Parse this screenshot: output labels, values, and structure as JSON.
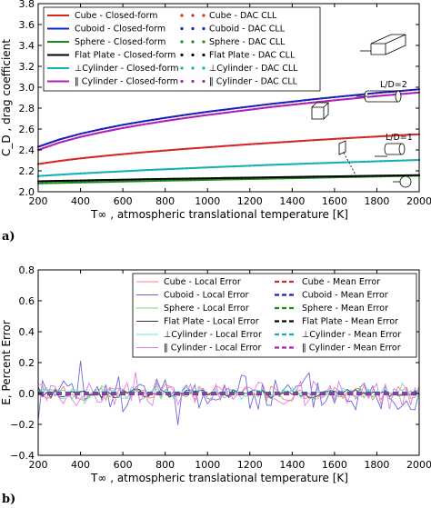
{
  "chart_data": [
    {
      "type": "line",
      "panel_label": "a)",
      "xlabel": "T∞ , atmospheric translational temperature [K]",
      "ylabel": "C_D , drag coefficient",
      "xlim": [
        200,
        2000
      ],
      "ylim": [
        2.0,
        3.8
      ],
      "xticks": [
        "200",
        "400",
        "600",
        "800",
        "1000",
        "1200",
        "1400",
        "1600",
        "1800",
        "2000"
      ],
      "yticks": [
        "2.0",
        "2.2",
        "2.4",
        "2.6",
        "2.8",
        "3.0",
        "3.2",
        "3.4",
        "3.6",
        "3.8"
      ],
      "grid": false,
      "legend_position": "top",
      "legend_columns": [
        [
          "Cube - Closed-form",
          "Cuboid - Closed-form",
          "Sphere - Closed-form",
          "Flat Plate - Closed-form",
          "⊥Cylinder - Closed-form",
          "‖ Cylinder - Closed-form"
        ],
        [
          "Cube - DAC CLL",
          "Cuboid - DAC CLL",
          "Sphere - DAC CLL",
          "Flat Plate - DAC CLL",
          "⊥Cylinder - DAC CLL",
          "‖ Cylinder - DAC CLL"
        ]
      ],
      "shape_annotations": [
        "L/D=2",
        "L/D=1"
      ],
      "x": [
        200,
        300,
        400,
        500,
        600,
        700,
        800,
        900,
        1000,
        1100,
        1200,
        1300,
        1400,
        1500,
        1600,
        1700,
        1800,
        1900,
        2000
      ],
      "series": [
        {
          "name": "Cube - Closed-form",
          "color": "#d62728",
          "style": "solid",
          "values": [
            2.265,
            2.295,
            2.32,
            2.34,
            2.36,
            2.378,
            2.395,
            2.41,
            2.425,
            2.44,
            2.455,
            2.468,
            2.48,
            2.493,
            2.505,
            2.517,
            2.528,
            2.54,
            2.55
          ]
        },
        {
          "name": "Cuboid - Closed-form",
          "color": "#1f1fbf",
          "style": "solid",
          "values": [
            2.43,
            2.5,
            2.555,
            2.6,
            2.64,
            2.675,
            2.707,
            2.737,
            2.765,
            2.79,
            2.815,
            2.84,
            2.862,
            2.885,
            2.905,
            2.925,
            2.945,
            2.962,
            2.98
          ]
        },
        {
          "name": "Sphere - Closed-form",
          "color": "#1a8a1a",
          "style": "solid",
          "values": [
            2.08,
            2.085,
            2.09,
            2.094,
            2.098,
            2.102,
            2.106,
            2.11,
            2.114,
            2.118,
            2.122,
            2.126,
            2.13,
            2.134,
            2.138,
            2.142,
            2.146,
            2.15,
            2.154
          ]
        },
        {
          "name": "Flat Plate - Closed-form",
          "color": "#000000",
          "style": "solid",
          "values": [
            2.1,
            2.104,
            2.108,
            2.112,
            2.116,
            2.12,
            2.123,
            2.126,
            2.129,
            2.132,
            2.135,
            2.138,
            2.141,
            2.144,
            2.147,
            2.15,
            2.153,
            2.156,
            2.159
          ]
        },
        {
          "name": "⊥Cylinder - Closed-form",
          "color": "#17b0b0",
          "style": "solid",
          "values": [
            2.15,
            2.163,
            2.175,
            2.186,
            2.196,
            2.206,
            2.215,
            2.224,
            2.233,
            2.241,
            2.249,
            2.257,
            2.264,
            2.271,
            2.278,
            2.285,
            2.291,
            2.298,
            2.304
          ]
        },
        {
          "name": "‖ Cylinder - Closed-form",
          "color": "#b020b0",
          "style": "solid",
          "values": [
            2.4,
            2.47,
            2.525,
            2.57,
            2.61,
            2.645,
            2.677,
            2.707,
            2.735,
            2.76,
            2.785,
            2.81,
            2.832,
            2.855,
            2.875,
            2.895,
            2.915,
            2.932,
            2.95
          ]
        },
        {
          "name": "Cube - DAC CLL",
          "color": "#d62728",
          "style": "dotted",
          "values": [
            2.265,
            2.295,
            2.32,
            2.34,
            2.36,
            2.378,
            2.395,
            2.41,
            2.425,
            2.44,
            2.455,
            2.468,
            2.48,
            2.493,
            2.505,
            2.517,
            2.528,
            2.54,
            2.55
          ]
        },
        {
          "name": "Cuboid - DAC CLL",
          "color": "#1f1fbf",
          "style": "dotted",
          "values": [
            2.43,
            2.5,
            2.555,
            2.6,
            2.64,
            2.675,
            2.707,
            2.737,
            2.765,
            2.79,
            2.815,
            2.84,
            2.862,
            2.885,
            2.905,
            2.925,
            2.945,
            2.962,
            2.98
          ]
        },
        {
          "name": "Sphere - DAC CLL",
          "color": "#1a8a1a",
          "style": "dotted",
          "values": [
            2.08,
            2.085,
            2.09,
            2.094,
            2.098,
            2.102,
            2.106,
            2.11,
            2.114,
            2.118,
            2.122,
            2.126,
            2.13,
            2.134,
            2.138,
            2.142,
            2.146,
            2.15,
            2.154
          ]
        },
        {
          "name": "Flat Plate - DAC CLL",
          "color": "#000000",
          "style": "dotted",
          "values": [
            2.1,
            2.104,
            2.108,
            2.112,
            2.116,
            2.12,
            2.123,
            2.126,
            2.129,
            2.132,
            2.135,
            2.138,
            2.141,
            2.144,
            2.147,
            2.15,
            2.153,
            2.156,
            2.159
          ]
        },
        {
          "name": "⊥Cylinder - DAC CLL",
          "color": "#17b0b0",
          "style": "dotted",
          "values": [
            2.15,
            2.163,
            2.175,
            2.186,
            2.196,
            2.206,
            2.215,
            2.224,
            2.233,
            2.241,
            2.249,
            2.257,
            2.264,
            2.271,
            2.278,
            2.285,
            2.291,
            2.298,
            2.304
          ]
        },
        {
          "name": "‖ Cylinder - DAC CLL",
          "color": "#b020b0",
          "style": "dotted",
          "values": [
            2.4,
            2.47,
            2.525,
            2.57,
            2.61,
            2.645,
            2.677,
            2.707,
            2.735,
            2.76,
            2.785,
            2.81,
            2.832,
            2.855,
            2.875,
            2.895,
            2.915,
            2.932,
            2.95
          ]
        }
      ]
    },
    {
      "type": "line",
      "panel_label": "b)",
      "xlabel": "T∞ , atmospheric translational temperature [K]",
      "ylabel": "E, Percent Error",
      "xlim": [
        200,
        2000
      ],
      "ylim": [
        -0.4,
        0.8
      ],
      "xticks": [
        "200",
        "400",
        "600",
        "800",
        "1000",
        "1200",
        "1400",
        "1600",
        "1800",
        "2000"
      ],
      "yticks": [
        "−0.4",
        "−0.2",
        "0.0",
        "0.2",
        "0.4",
        "0.6",
        "0.8"
      ],
      "grid": false,
      "legend_position": "top-right",
      "legend_columns": [
        [
          "Cube - Local Error",
          "Cuboid - Local Error",
          "Sphere - Local Error",
          "Flat Plate - Local Error",
          "⊥Cylinder - Local Error",
          "‖ Cylinder - Local Error"
        ],
        [
          "Cube - Mean Error",
          "Cuboid - Mean Error",
          "Sphere - Mean Error",
          "Flat Plate - Mean Error",
          "⊥Cylinder - Mean Error",
          "‖ Cylinder - Mean Error"
        ]
      ],
      "x_start": 200,
      "x_step": 20,
      "series": [
        {
          "name": "Cube - Local Error",
          "color": "#ff7f7f",
          "style": "solid",
          "amplitude": 0.05,
          "seed": 11
        },
        {
          "name": "Cuboid - Local Error",
          "color": "#6a6ad8",
          "style": "solid",
          "amplitude": 0.12,
          "seed": 23
        },
        {
          "name": "Sphere - Local Error",
          "color": "#7fd07f",
          "style": "solid",
          "amplitude": 0.03,
          "seed": 37
        },
        {
          "name": "Flat Plate - Local Error",
          "color": "#333333",
          "style": "solid",
          "amplitude": 0.03,
          "seed": 41
        },
        {
          "name": "⊥Cylinder - Local Error",
          "color": "#7fd8d8",
          "style": "solid",
          "amplitude": 0.04,
          "seed": 53
        },
        {
          "name": "‖ Cylinder - Local Error",
          "color": "#e07fe0",
          "style": "solid",
          "amplitude": 0.08,
          "seed": 67
        },
        {
          "name": "Cube - Mean Error",
          "color": "#d62728",
          "style": "dashed",
          "value": 0.0
        },
        {
          "name": "Cuboid - Mean Error",
          "color": "#1f1fbf",
          "style": "dashed",
          "value": 0.005
        },
        {
          "name": "Sphere - Mean Error",
          "color": "#1a8a1a",
          "style": "dashed",
          "value": -0.005
        },
        {
          "name": "Flat Plate - Mean Error",
          "color": "#000000",
          "style": "dashed",
          "value": 0.0
        },
        {
          "name": "⊥Cylinder - Mean Error",
          "color": "#17b0b0",
          "style": "dashed",
          "value": 0.002
        },
        {
          "name": "‖ Cylinder - Mean Error",
          "color": "#b020b0",
          "style": "dashed",
          "value": -0.003
        }
      ]
    }
  ]
}
